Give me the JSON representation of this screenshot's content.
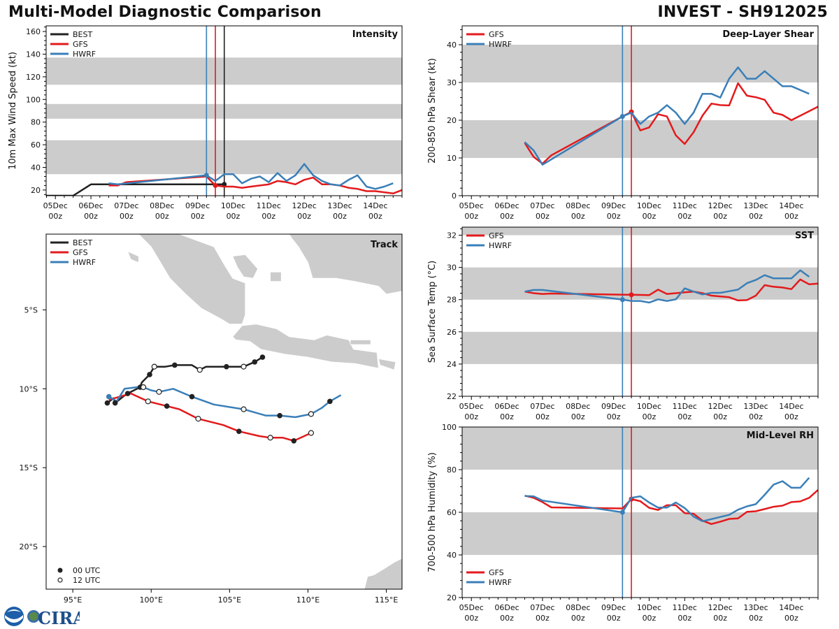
{
  "header": {
    "title": "Multi-Model Diagnostic Comparison",
    "storm": "INVEST - SH912025"
  },
  "colors": {
    "BEST": "#222222",
    "GFS": "#e31a1c",
    "HWRF": "#3a7fb8",
    "band": "#cccccc",
    "land": "#cccccc"
  },
  "time_ticks": [
    {
      "day": 0,
      "line1": "05Dec",
      "line2": "00z"
    },
    {
      "day": 1,
      "line1": "06Dec",
      "line2": "00z"
    },
    {
      "day": 2,
      "line1": "07Dec",
      "line2": "00z"
    },
    {
      "day": 3,
      "line1": "08Dec",
      "line2": "00z"
    },
    {
      "day": 4,
      "line1": "09Dec",
      "line2": "00z"
    },
    {
      "day": 5,
      "line1": "10Dec",
      "line2": "00z"
    },
    {
      "day": 6,
      "line1": "11Dec",
      "line2": "00z"
    },
    {
      "day": 7,
      "line1": "12Dec",
      "line2": "00z"
    },
    {
      "day": 8,
      "line1": "13Dec",
      "line2": "00z"
    },
    {
      "day": 9,
      "line1": "14Dec",
      "line2": "00z"
    }
  ],
  "chart_data": [
    {
      "id": "intensity",
      "type": "line",
      "title": "Intensity",
      "ylabel": "10m Max Wind Speed (kt)",
      "xlabel": "",
      "x_units": "days since 05Dec 00z",
      "xlim": [
        -0.26,
        9.75
      ],
      "ylim": [
        15,
        165
      ],
      "yticks": [
        20,
        40,
        60,
        80,
        100,
        120,
        140,
        160
      ],
      "bands": [
        [
          34,
          64
        ],
        [
          83,
          96
        ],
        [
          113,
          137
        ]
      ],
      "legend": [
        "BEST",
        "GFS",
        "HWRF"
      ],
      "legend_position": "top-left",
      "init_lines": [
        {
          "model": "HWRF",
          "x": 4.25
        },
        {
          "model": "GFS",
          "x": 4.5
        },
        {
          "model": "BEST",
          "x": 4.75
        }
      ],
      "series": [
        {
          "name": "BEST",
          "x": [
            -0.26,
            0.5,
            1.0,
            1.5,
            2.0,
            3.0,
            4.0,
            4.5,
            4.75
          ],
          "y": [
            15,
            15,
            25,
            25,
            25,
            25,
            25,
            25,
            25
          ],
          "marker_at": 4.75
        },
        {
          "name": "GFS",
          "x": [
            1.5,
            1.75,
            2.0,
            4.25,
            4.5,
            4.75,
            5.0,
            5.25,
            5.5,
            5.75,
            6.0,
            6.25,
            6.5,
            6.75,
            7.0,
            7.25,
            7.5,
            7.75,
            8.0,
            8.25,
            8.5,
            8.75,
            9.0,
            9.25,
            9.5,
            9.75
          ],
          "y": [
            24,
            24,
            27,
            32,
            24,
            23,
            23,
            22,
            23,
            24,
            25,
            28,
            27,
            25,
            29,
            31,
            25,
            25,
            24,
            22,
            21,
            19,
            19,
            18,
            17,
            20
          ],
          "marker_at": 4.5
        },
        {
          "name": "HWRF",
          "x": [
            1.5,
            1.75,
            4.25,
            4.5,
            4.75,
            5.0,
            5.25,
            5.5,
            5.75,
            6.0,
            6.25,
            6.5,
            6.75,
            7.0,
            7.25,
            7.5,
            7.75,
            8.0,
            8.25,
            8.5,
            8.75,
            9.0,
            9.25,
            9.5
          ],
          "y": [
            26,
            25,
            33,
            28,
            34,
            34,
            26,
            30,
            32,
            27,
            35,
            28,
            33,
            43,
            33,
            28,
            25,
            24,
            29,
            33,
            23,
            21,
            23,
            26
          ],
          "marker_at": 4.25
        }
      ]
    },
    {
      "id": "shear",
      "type": "line",
      "title": "Deep-Layer Shear",
      "ylabel": "200-850 hPa Shear (kt)",
      "xlabel": "",
      "xlim": [
        -0.26,
        9.75
      ],
      "ylim": [
        0,
        45
      ],
      "yticks": [
        0,
        10,
        20,
        30,
        40
      ],
      "bands": [
        [
          10,
          20
        ],
        [
          30,
          40
        ]
      ],
      "legend": [
        "GFS",
        "HWRF"
      ],
      "legend_position": "top-left",
      "init_lines": [
        {
          "model": "HWRF",
          "x": 4.25
        },
        {
          "model": "GFS",
          "x": 4.5
        }
      ],
      "series": [
        {
          "name": "GFS",
          "x": [
            1.5,
            1.75,
            2.0,
            2.25,
            4.25,
            4.5,
            4.75,
            5.0,
            5.25,
            5.5,
            5.75,
            6.0,
            6.25,
            6.5,
            6.75,
            7.0,
            7.25,
            7.5,
            7.75,
            8.0,
            8.25,
            8.5,
            8.75,
            9.0,
            9.75
          ],
          "y": [
            14,
            10.3,
            8.5,
            10.7,
            21,
            22.2,
            17.3,
            18.1,
            21.6,
            21,
            16,
            13.7,
            16.8,
            21.2,
            24.4,
            24,
            23.9,
            29.8,
            26.5,
            26.1,
            25.4,
            22,
            21.4,
            20,
            23.6
          ],
          "marker_at": 4.5
        },
        {
          "name": "HWRF",
          "x": [
            1.5,
            1.75,
            2.0,
            4.25,
            4.5,
            4.75,
            5.0,
            5.25,
            5.5,
            5.75,
            6.0,
            6.25,
            6.5,
            6.75,
            7.0,
            7.25,
            7.5,
            7.75,
            8.0,
            8.25,
            8.5,
            8.75,
            9.0,
            9.5
          ],
          "y": [
            14.2,
            12,
            8.2,
            21,
            22,
            19,
            21,
            22,
            24,
            22,
            19,
            22,
            27,
            27,
            26,
            31,
            34,
            31,
            31,
            33,
            31,
            29,
            29,
            27
          ],
          "marker_at": 4.25
        }
      ]
    },
    {
      "id": "sst",
      "type": "line",
      "title": "SST",
      "ylabel": "Sea Surface Temp (°C)",
      "xlabel": "",
      "xlim": [
        -0.26,
        9.75
      ],
      "ylim": [
        22,
        32.5
      ],
      "yticks": [
        22,
        24,
        26,
        28,
        30,
        32
      ],
      "bands": [
        [
          24,
          26
        ],
        [
          28,
          30
        ],
        [
          32,
          32.5
        ]
      ],
      "legend": [
        "GFS",
        "HWRF"
      ],
      "legend_position": "top-left",
      "init_lines": [
        {
          "model": "HWRF",
          "x": 4.25
        },
        {
          "model": "GFS",
          "x": 4.5
        }
      ],
      "series": [
        {
          "name": "GFS",
          "x": [
            1.5,
            1.75,
            2.0,
            2.25,
            4.5,
            5.0,
            5.25,
            5.5,
            5.75,
            6.0,
            6.25,
            6.5,
            6.75,
            7.0,
            7.25,
            7.5,
            7.75,
            8.0,
            8.25,
            8.5,
            8.75,
            9.0,
            9.25,
            9.5,
            9.75
          ],
          "y": [
            28.5,
            28.4,
            28.35,
            28.38,
            28.3,
            28.28,
            28.62,
            28.35,
            28.4,
            28.45,
            28.5,
            28.4,
            28.25,
            28.2,
            28.15,
            27.95,
            27.97,
            28.25,
            28.9,
            28.8,
            28.75,
            28.65,
            29.25,
            28.95,
            29.0
          ],
          "marker_at": 4.5
        },
        {
          "name": "HWRF",
          "x": [
            1.5,
            1.75,
            2.0,
            4.25,
            4.5,
            4.75,
            5.0,
            5.25,
            5.5,
            5.75,
            6.0,
            6.25,
            6.5,
            6.75,
            7.0,
            7.25,
            7.5,
            7.75,
            8.0,
            8.25,
            8.5,
            8.75,
            9.0,
            9.25,
            9.5
          ],
          "y": [
            28.5,
            28.6,
            28.6,
            28.0,
            27.92,
            27.92,
            27.82,
            28.02,
            27.92,
            28.02,
            28.7,
            28.5,
            28.32,
            28.42,
            28.42,
            28.52,
            28.62,
            29.02,
            29.22,
            29.52,
            29.32,
            29.32,
            29.32,
            29.82,
            29.42
          ],
          "marker_at": 4.25
        }
      ]
    },
    {
      "id": "rh",
      "type": "line",
      "title": "Mid-Level RH",
      "ylabel": "700-500 hPa Humidity (%)",
      "xlabel": "",
      "xlim": [
        -0.26,
        9.75
      ],
      "ylim": [
        20,
        100
      ],
      "yticks": [
        20,
        40,
        60,
        80,
        100
      ],
      "bands": [
        [
          40,
          60
        ],
        [
          80,
          100
        ]
      ],
      "legend": [
        "GFS",
        "HWRF"
      ],
      "legend_position": "bottom-left",
      "init_lines": [
        {
          "model": "HWRF",
          "x": 4.25
        },
        {
          "model": "GFS",
          "x": 4.5
        }
      ],
      "series": [
        {
          "name": "GFS",
          "x": [
            1.5,
            1.75,
            2.0,
            2.25,
            4.25,
            4.5,
            4.75,
            5.0,
            5.25,
            5.5,
            5.75,
            6.0,
            6.25,
            6.5,
            6.75,
            7.0,
            7.25,
            7.5,
            7.75,
            8.0,
            8.25,
            8.5,
            8.75,
            9.0,
            9.25,
            9.5,
            9.75
          ],
          "y": [
            67.8,
            66.8,
            64.8,
            62.3,
            61.8,
            66.2,
            65.2,
            62.1,
            61.1,
            63.3,
            63.3,
            59.6,
            59.3,
            56.1,
            54.5,
            55.6,
            56.9,
            57.1,
            60.2,
            60.5,
            61.5,
            62.6,
            63.1,
            64.8,
            65.1,
            66.8,
            70.5
          ],
          "marker_at": 4.5
        },
        {
          "name": "HWRF",
          "x": [
            1.5,
            1.75,
            2.0,
            4.25,
            4.5,
            4.75,
            5.0,
            5.25,
            5.5,
            5.75,
            6.0,
            6.25,
            6.5,
            6.75,
            7.0,
            7.25,
            7.5,
            7.75,
            8.0,
            8.25,
            8.5,
            8.75,
            9.0,
            9.25,
            9.5
          ],
          "y": [
            67.6,
            67.5,
            65.5,
            60.0,
            66.8,
            67.5,
            64.6,
            62.2,
            62.2,
            64.6,
            62.0,
            58.0,
            55.8,
            56.8,
            57.8,
            58.8,
            61.2,
            62.8,
            63.8,
            68.2,
            73.0,
            74.6,
            71.5,
            71.5,
            76.2
          ],
          "marker_at": 4.25
        }
      ]
    },
    {
      "id": "track",
      "type": "scatter",
      "title": "Track",
      "xlabel": "",
      "ylabel": "",
      "xlim": [
        93.3,
        116.0
      ],
      "ylim": [
        -22.7,
        -0.2
      ],
      "xticks": [
        {
          "v": 95,
          "label": "95°E"
        },
        {
          "v": 100,
          "label": "100°E"
        },
        {
          "v": 105,
          "label": "105°E"
        },
        {
          "v": 110,
          "label": "110°E"
        },
        {
          "v": 115,
          "label": "115°E"
        }
      ],
      "yticks": [
        {
          "v": -5,
          "label": "5°S"
        },
        {
          "v": -10,
          "label": "10°S"
        },
        {
          "v": -15,
          "label": "15°S"
        },
        {
          "v": -20,
          "label": "20°S"
        }
      ],
      "legend": [
        "BEST",
        "GFS",
        "HWRF"
      ],
      "legend_position": "top-left",
      "marker_legend": [
        {
          "label": "00 UTC",
          "filled": true
        },
        {
          "label": "12 UTC",
          "filled": false
        }
      ],
      "series": [
        {
          "name": "BEST",
          "points": [
            {
              "lon": 97.2,
              "lat": -10.9,
              "m": "f"
            },
            {
              "lon": 97.6,
              "lat": -10.6,
              "m": "n"
            },
            {
              "lon": 97.7,
              "lat": -10.9,
              "m": "f"
            },
            {
              "lon": 98.2,
              "lat": -10.5,
              "m": "n"
            },
            {
              "lon": 98.5,
              "lat": -10.3,
              "m": "f"
            },
            {
              "lon": 99.3,
              "lat": -9.9,
              "m": "f"
            },
            {
              "lon": 99.4,
              "lat": -9.6,
              "m": "n"
            },
            {
              "lon": 99.9,
              "lat": -9.1,
              "m": "f"
            },
            {
              "lon": 100.2,
              "lat": -8.6,
              "m": "o"
            },
            {
              "lon": 100.9,
              "lat": -8.6,
              "m": "n"
            },
            {
              "lon": 101.5,
              "lat": -8.5,
              "m": "f"
            },
            {
              "lon": 102.6,
              "lat": -8.5,
              "m": "n"
            },
            {
              "lon": 103.1,
              "lat": -8.8,
              "m": "o"
            },
            {
              "lon": 103.5,
              "lat": -8.6,
              "m": "n"
            },
            {
              "lon": 104.8,
              "lat": -8.6,
              "m": "f"
            },
            {
              "lon": 105.9,
              "lat": -8.6,
              "m": "o"
            },
            {
              "lon": 106.6,
              "lat": -8.3,
              "m": "f"
            },
            {
              "lon": 107.1,
              "lat": -8.0,
              "m": "f"
            }
          ]
        },
        {
          "name": "GFS",
          "points": [
            {
              "lon": 97.3,
              "lat": -10.7,
              "m": "n"
            },
            {
              "lon": 98.0,
              "lat": -10.5,
              "m": "n"
            },
            {
              "lon": 98.7,
              "lat": -10.3,
              "m": "n"
            },
            {
              "lon": 99.8,
              "lat": -10.8,
              "m": "o"
            },
            {
              "lon": 101.0,
              "lat": -11.1,
              "m": "f"
            },
            {
              "lon": 101.8,
              "lat": -11.3,
              "m": "n"
            },
            {
              "lon": 103.0,
              "lat": -11.9,
              "m": "o"
            },
            {
              "lon": 104.6,
              "lat": -12.3,
              "m": "n"
            },
            {
              "lon": 105.6,
              "lat": -12.7,
              "m": "f"
            },
            {
              "lon": 106.9,
              "lat": -13.0,
              "m": "n"
            },
            {
              "lon": 107.6,
              "lat": -13.1,
              "m": "o"
            },
            {
              "lon": 108.4,
              "lat": -13.1,
              "m": "n"
            },
            {
              "lon": 109.1,
              "lat": -13.3,
              "m": "f"
            },
            {
              "lon": 110.2,
              "lat": -12.8,
              "m": "o"
            }
          ]
        },
        {
          "name": "HWRF",
          "points": [
            {
              "lon": 97.3,
              "lat": -10.5,
              "m": "b"
            },
            {
              "lon": 97.8,
              "lat": -10.8,
              "m": "n"
            },
            {
              "lon": 98.3,
              "lat": -10.0,
              "m": "n"
            },
            {
              "lon": 99.1,
              "lat": -9.9,
              "m": "n"
            },
            {
              "lon": 99.5,
              "lat": -9.9,
              "m": "o"
            },
            {
              "lon": 100.0,
              "lat": -10.1,
              "m": "n"
            },
            {
              "lon": 100.5,
              "lat": -10.2,
              "m": "o"
            },
            {
              "lon": 101.4,
              "lat": -10.0,
              "m": "n"
            },
            {
              "lon": 102.6,
              "lat": -10.5,
              "m": "f"
            },
            {
              "lon": 104.0,
              "lat": -11.0,
              "m": "n"
            },
            {
              "lon": 105.9,
              "lat": -11.3,
              "m": "o"
            },
            {
              "lon": 107.3,
              "lat": -11.7,
              "m": "n"
            },
            {
              "lon": 108.2,
              "lat": -11.7,
              "m": "f"
            },
            {
              "lon": 109.2,
              "lat": -11.8,
              "m": "n"
            },
            {
              "lon": 110.2,
              "lat": -11.6,
              "m": "o"
            },
            {
              "lon": 110.9,
              "lat": -11.2,
              "m": "n"
            },
            {
              "lon": 111.4,
              "lat": -10.8,
              "m": "f"
            },
            {
              "lon": 112.1,
              "lat": -10.4,
              "m": "n"
            }
          ]
        }
      ]
    }
  ],
  "logo": {
    "noaa": "NOAA",
    "cira": "CIRA"
  }
}
